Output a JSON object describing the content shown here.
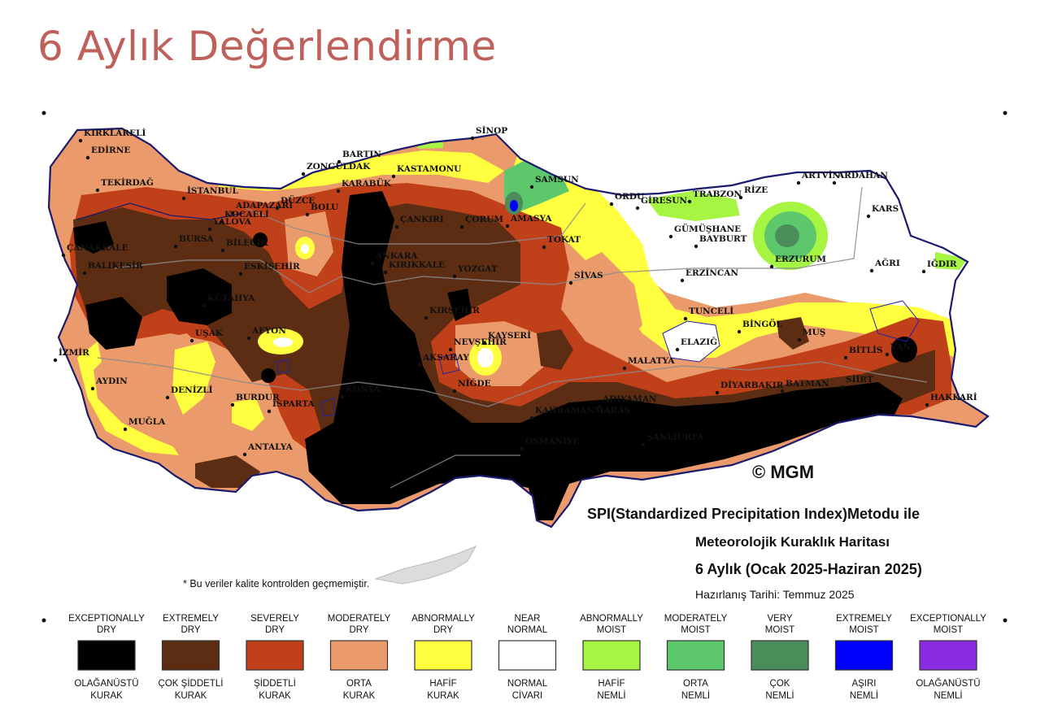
{
  "page": {
    "title": "6 Aylık Değerlendirme"
  },
  "map": {
    "copyright": "© MGM",
    "heading_line1": "SPI(Standardized Precipitation Index)Metodu ile",
    "heading_line2": "Meteorolojik Kuraklık Haritası",
    "heading_line3": "6 Aylık (Ocak 2025-Haziran 2025)",
    "prepared_date": "Hazırlanış Tarihi: Temmuz 2025",
    "quality_note": "* Bu veriler kalite kontrolden geçmemiştir.",
    "cities": [
      {
        "name": "KIRKLARELİ"
      },
      {
        "name": "EDİRNE"
      },
      {
        "name": "TEKİRDAĞ"
      },
      {
        "name": "İSTANBUL"
      },
      {
        "name": "ÇANAKKALE"
      },
      {
        "name": "BALIKESİR"
      },
      {
        "name": "İZMİR"
      },
      {
        "name": "AYDIN"
      },
      {
        "name": "MUĞLA"
      },
      {
        "name": "DENİZLİ"
      },
      {
        "name": "UŞAK"
      },
      {
        "name": "BURDUR"
      },
      {
        "name": "ISPARTA"
      },
      {
        "name": "ANTALYA"
      },
      {
        "name": "AFYON"
      },
      {
        "name": "KÜTAHYA"
      },
      {
        "name": "BİLECİK"
      },
      {
        "name": "BURSA"
      },
      {
        "name": "YALOVA"
      },
      {
        "name": "KOCAELİ"
      },
      {
        "name": "ADAPAZARI"
      },
      {
        "name": "DÜZCE"
      },
      {
        "name": "BOLU"
      },
      {
        "name": "ESKİŞEHİR"
      },
      {
        "name": "ZONGULDAK"
      },
      {
        "name": "BARTIN"
      },
      {
        "name": "KARABÜK"
      },
      {
        "name": "KASTAMONU"
      },
      {
        "name": "SİNOP"
      },
      {
        "name": "SAMSUN"
      },
      {
        "name": "ÇANKIRI"
      },
      {
        "name": "ÇORUM"
      },
      {
        "name": "AMASYA"
      },
      {
        "name": "ANKARA"
      },
      {
        "name": "KIRIKKALE"
      },
      {
        "name": "YOZGAT"
      },
      {
        "name": "KIRŞEHİR"
      },
      {
        "name": "NEVŞEHİR"
      },
      {
        "name": "AKSARAY"
      },
      {
        "name": "KAYSERİ"
      },
      {
        "name": "NİĞDE"
      },
      {
        "name": "KONYA"
      },
      {
        "name": "TOKAT"
      },
      {
        "name": "SİVAS"
      },
      {
        "name": "ORDU"
      },
      {
        "name": "GİRESUN"
      },
      {
        "name": "TRABZON"
      },
      {
        "name": "RİZE"
      },
      {
        "name": "GÜMÜŞHANE"
      },
      {
        "name": "BAYBURT"
      },
      {
        "name": "ARTVİN"
      },
      {
        "name": "ARDAHAN"
      },
      {
        "name": "KARS"
      },
      {
        "name": "ERZURUM"
      },
      {
        "name": "ERZİNCAN"
      },
      {
        "name": "AĞRI"
      },
      {
        "name": "IĞDIR"
      },
      {
        "name": "TUNCELİ"
      },
      {
        "name": "BİNGÖL"
      },
      {
        "name": "ELAZIĞ"
      },
      {
        "name": "MUŞ"
      },
      {
        "name": "BİTLİS"
      },
      {
        "name": "VAN"
      },
      {
        "name": "HAKKARİ"
      },
      {
        "name": "SİİRT"
      },
      {
        "name": "BATMAN"
      },
      {
        "name": "DİYARBAKIR"
      },
      {
        "name": "MALATYA"
      },
      {
        "name": "ADIYAMAN"
      },
      {
        "name": "KAHRAMANMARAŞ"
      },
      {
        "name": "OSMANİYE"
      },
      {
        "name": "ŞANLIURFA"
      }
    ]
  },
  "legend": [
    {
      "en1": "EXCEPTIONALLY",
      "en2": "DRY",
      "tr1": "OLAĞANÜSTÜ",
      "tr2": "KURAK",
      "color": "#000000"
    },
    {
      "en1": "EXTREMELY",
      "en2": "DRY",
      "tr1": "ÇOK ŞİDDETLİ",
      "tr2": "KURAK",
      "color": "#5c2d12"
    },
    {
      "en1": "SEVERELY",
      "en2": "DRY",
      "tr1": "ŞİDDETLİ",
      "tr2": "KURAK",
      "color": "#c0401a"
    },
    {
      "en1": "MODERATELY",
      "en2": "DRY",
      "tr1": "ORTA",
      "tr2": "KURAK",
      "color": "#eb9b6b"
    },
    {
      "en1": "ABNORMALLY",
      "en2": "DRY",
      "tr1": "HAFİF",
      "tr2": "KURAK",
      "color": "#ffff40"
    },
    {
      "en1": "NEAR",
      "en2": "NORMAL",
      "tr1": "NORMAL",
      "tr2": "CİVARI",
      "color": "#ffffff"
    },
    {
      "en1": "ABNORMALLY",
      "en2": "MOIST",
      "tr1": "HAFİF",
      "tr2": "NEMLİ",
      "color": "#a6f542"
    },
    {
      "en1": "MODERATELY",
      "en2": "MOIST",
      "tr1": "ORTA",
      "tr2": "NEMLİ",
      "color": "#5cc86b"
    },
    {
      "en1": "VERY",
      "en2": "MOIST",
      "tr1": "ÇOK",
      "tr2": "NEMLİ",
      "color": "#4a8c5a"
    },
    {
      "en1": "EXTREMELY",
      "en2": "MOIST",
      "tr1": "AŞIRI",
      "tr2": "NEMLİ",
      "color": "#0000ff"
    },
    {
      "en1": "EXCEPTIONALLY",
      "en2": "MOIST",
      "tr1": "OLAĞANÜSTÜ",
      "tr2": "NEMLİ",
      "color": "#8a2be2"
    }
  ]
}
